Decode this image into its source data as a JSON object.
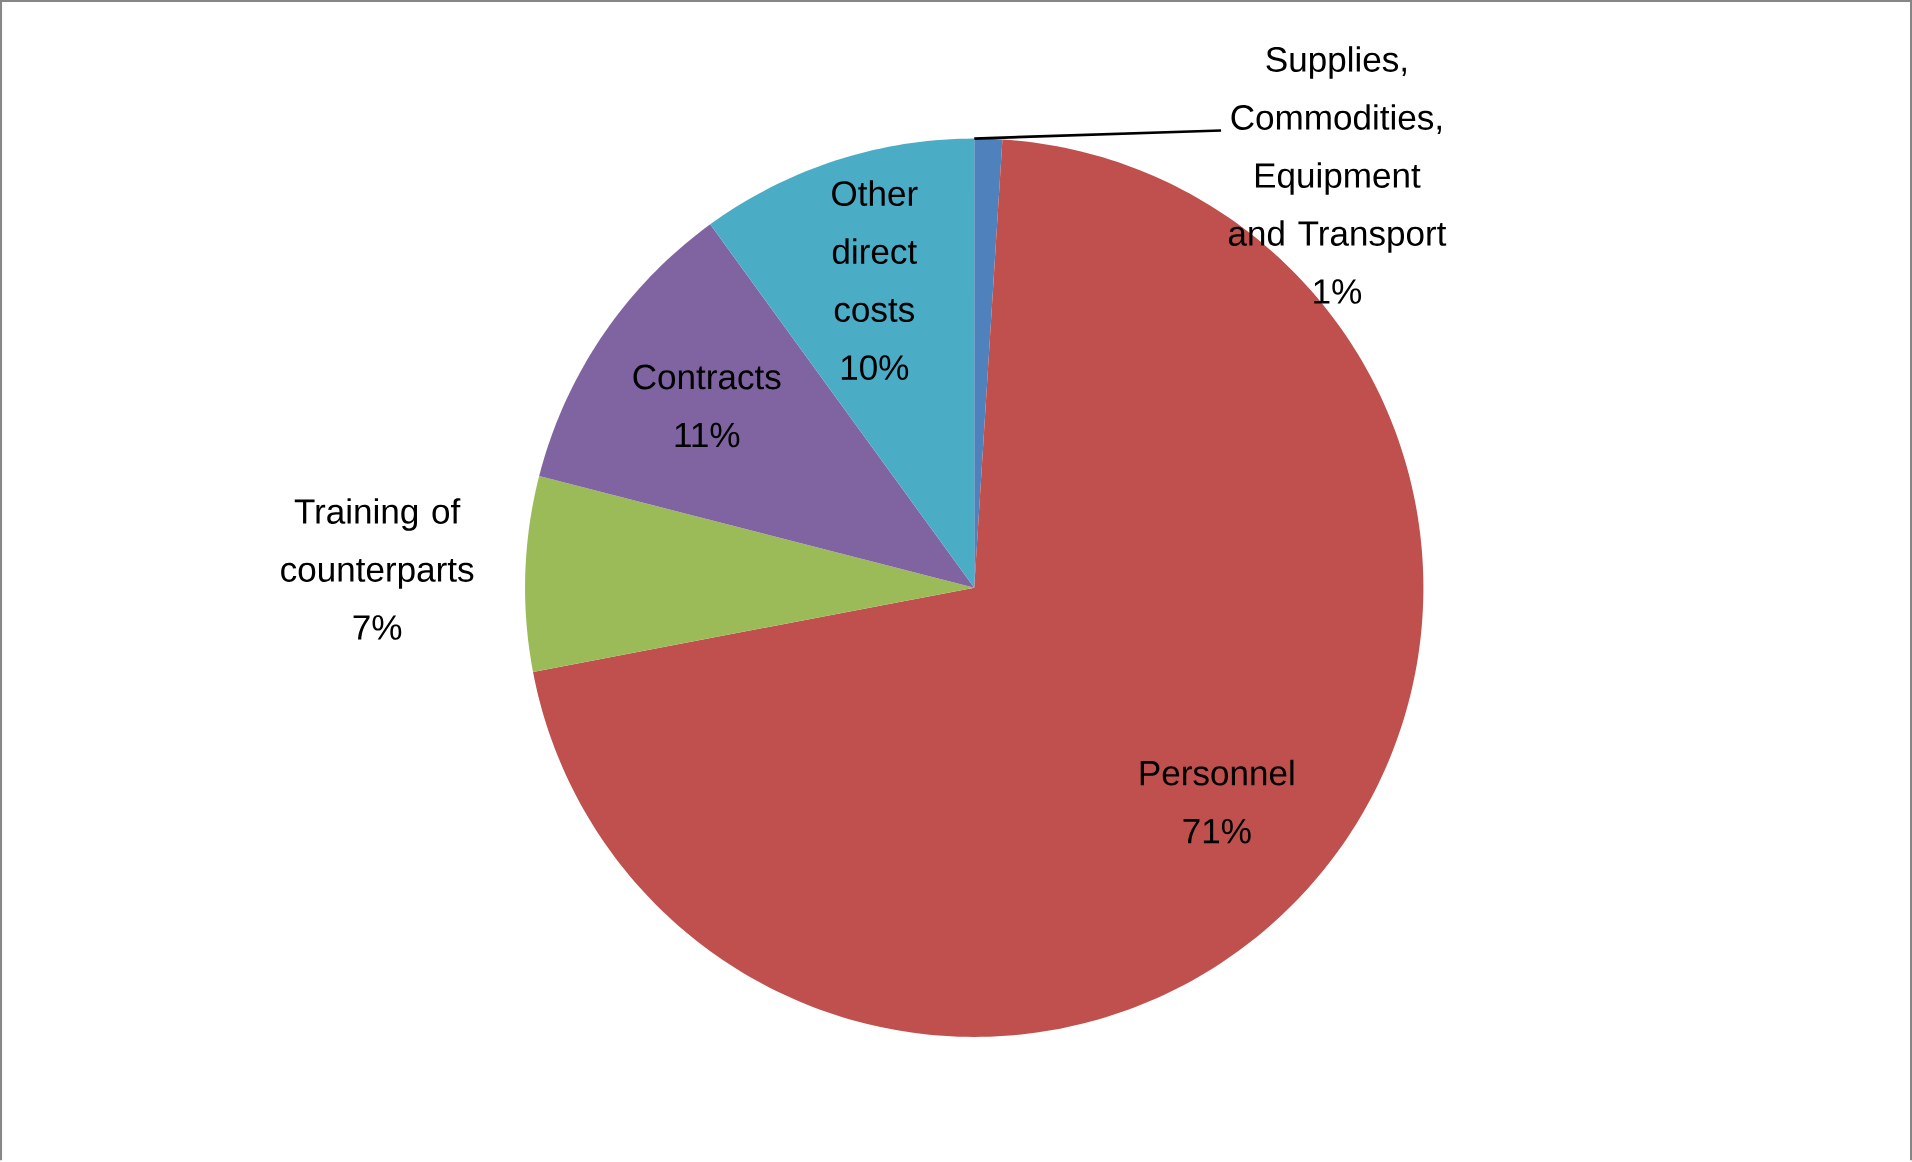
{
  "chart_data": {
    "type": "pie",
    "categories": [
      "Supplies, Commodities, Equipment and Transport",
      "Personnel",
      "Training of counterparts",
      "Contracts",
      "Other direct costs"
    ],
    "values": [
      1,
      71,
      7,
      11,
      10
    ],
    "value_labels": [
      "1%",
      "71%",
      "7%",
      "11%",
      "10%"
    ],
    "colors": [
      "#4f81bd",
      "#c0504d",
      "#9bbb59",
      "#8064a2",
      "#4bacc6"
    ]
  }
}
